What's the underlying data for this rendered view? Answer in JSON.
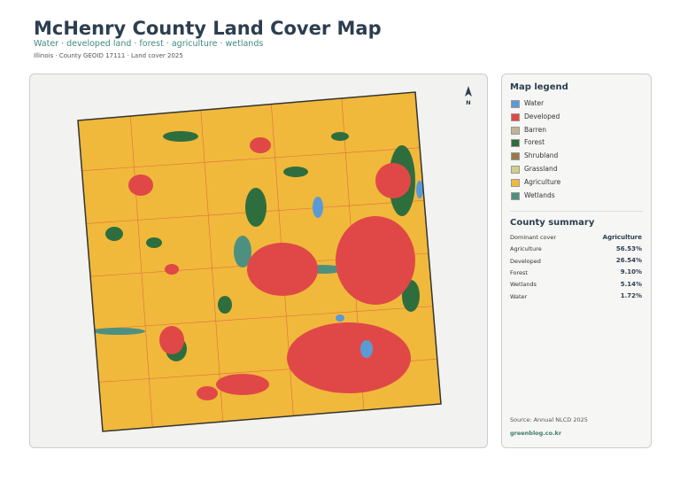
{
  "header": {
    "title": "McHenry County Land Cover Map",
    "subtitle": "Water · developed land · forest · agriculture · wetlands",
    "meta": "Illinois · County GEOID 17111 · Land cover 2025"
  },
  "map": {
    "north": "N"
  },
  "legend": {
    "title": "Map legend",
    "items": [
      {
        "label": "Water",
        "color": "#5b9bd5"
      },
      {
        "label": "Developed",
        "color": "#e04848"
      },
      {
        "label": "Barren",
        "color": "#bfb49a"
      },
      {
        "label": "Forest",
        "color": "#2e6e3e"
      },
      {
        "label": "Shrubland",
        "color": "#9a7a4a"
      },
      {
        "label": "Grassland",
        "color": "#cfcf8a"
      },
      {
        "label": "Agriculture",
        "color": "#f0b93b"
      },
      {
        "label": "Wetlands",
        "color": "#4e9080"
      }
    ]
  },
  "summary": {
    "title": "County summary",
    "rows": [
      [
        "Dominant cover",
        "Agriculture"
      ],
      [
        "Agriculture",
        "56.53%"
      ],
      [
        "Developed",
        "26.54%"
      ],
      [
        "Forest",
        "9.10%"
      ],
      [
        "Wetlands",
        "5.14%"
      ],
      [
        "Water",
        "1.72%"
      ]
    ]
  },
  "footer": {
    "source": "Source: Annual NLCD 2025",
    "site": "greenblog.co.kr"
  }
}
